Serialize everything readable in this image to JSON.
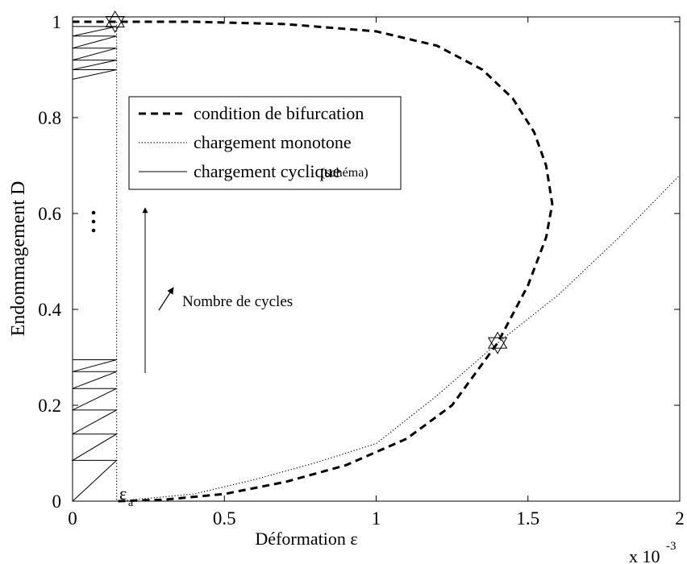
{
  "chart_data": {
    "type": "line",
    "xlabel": "Déformation  ε",
    "ylabel": "Endommagement D",
    "x_multiplier": {
      "base": "x 10",
      "exponent": "-3"
    },
    "xlim": [
      0,
      2
    ],
    "ylim": [
      0,
      1.01
    ],
    "xticks": [
      0,
      0.5,
      1,
      1.5,
      2
    ],
    "yticks": [
      0,
      0.2,
      0.4,
      0.6,
      0.8,
      1
    ],
    "grid": false,
    "legend": "upper left",
    "legend_note": "(schéma)",
    "series": [
      {
        "name": "condition de bifurcation",
        "color": "#000000",
        "style": "dashed",
        "x": [
          0.15,
          0.3,
          0.5,
          0.7,
          0.9,
          1.1,
          1.25,
          1.4,
          1.5,
          1.56,
          1.58,
          1.56,
          1.52,
          1.45,
          1.35,
          1.2,
          1.0,
          0.7,
          0.4,
          0.14,
          0
        ],
        "values": [
          0,
          0.003,
          0.015,
          0.04,
          0.075,
          0.13,
          0.2,
          0.33,
          0.45,
          0.55,
          0.62,
          0.7,
          0.77,
          0.84,
          0.9,
          0.95,
          0.98,
          0.995,
          1.0,
          1.0,
          1.0
        ]
      },
      {
        "name": "chargement monotone",
        "color": "#000000",
        "style": "dotted",
        "x": [
          0.145,
          0.145,
          null,
          0.15,
          0.4,
          0.6,
          0.8,
          1.0,
          1.2,
          1.4,
          1.6,
          1.8,
          2.0
        ],
        "values": [
          1.0,
          0,
          null,
          0,
          0.015,
          0.045,
          0.08,
          0.12,
          0.22,
          0.33,
          0.43,
          0.55,
          0.68
        ]
      },
      {
        "name": "chargement cyclique",
        "color": "#000000",
        "style": "solid",
        "x": [
          0,
          0.145,
          0,
          0.145,
          0,
          0.145,
          0,
          0.145,
          0,
          0.145,
          0,
          0.145,
          0,
          null,
          0,
          0.145,
          0,
          0.145,
          0,
          0.145,
          0,
          0.145,
          0,
          0.145,
          0
        ],
        "values": [
          0,
          0.085,
          0.085,
          0.14,
          0.14,
          0.19,
          0.19,
          0.235,
          0.235,
          0.27,
          0.27,
          0.295,
          0.295,
          null,
          0.88,
          0.9,
          0.9,
          0.92,
          0.92,
          0.945,
          0.945,
          0.97,
          0.97,
          0.99,
          0.99
        ]
      }
    ],
    "markers": [
      {
        "x": 0.14,
        "y": 1.0
      },
      {
        "x": 1.4,
        "y": 0.33
      }
    ],
    "strain_label": {
      "symbol": "ε",
      "subscript": "a"
    },
    "cycles_label": "Nombre de cycles"
  }
}
